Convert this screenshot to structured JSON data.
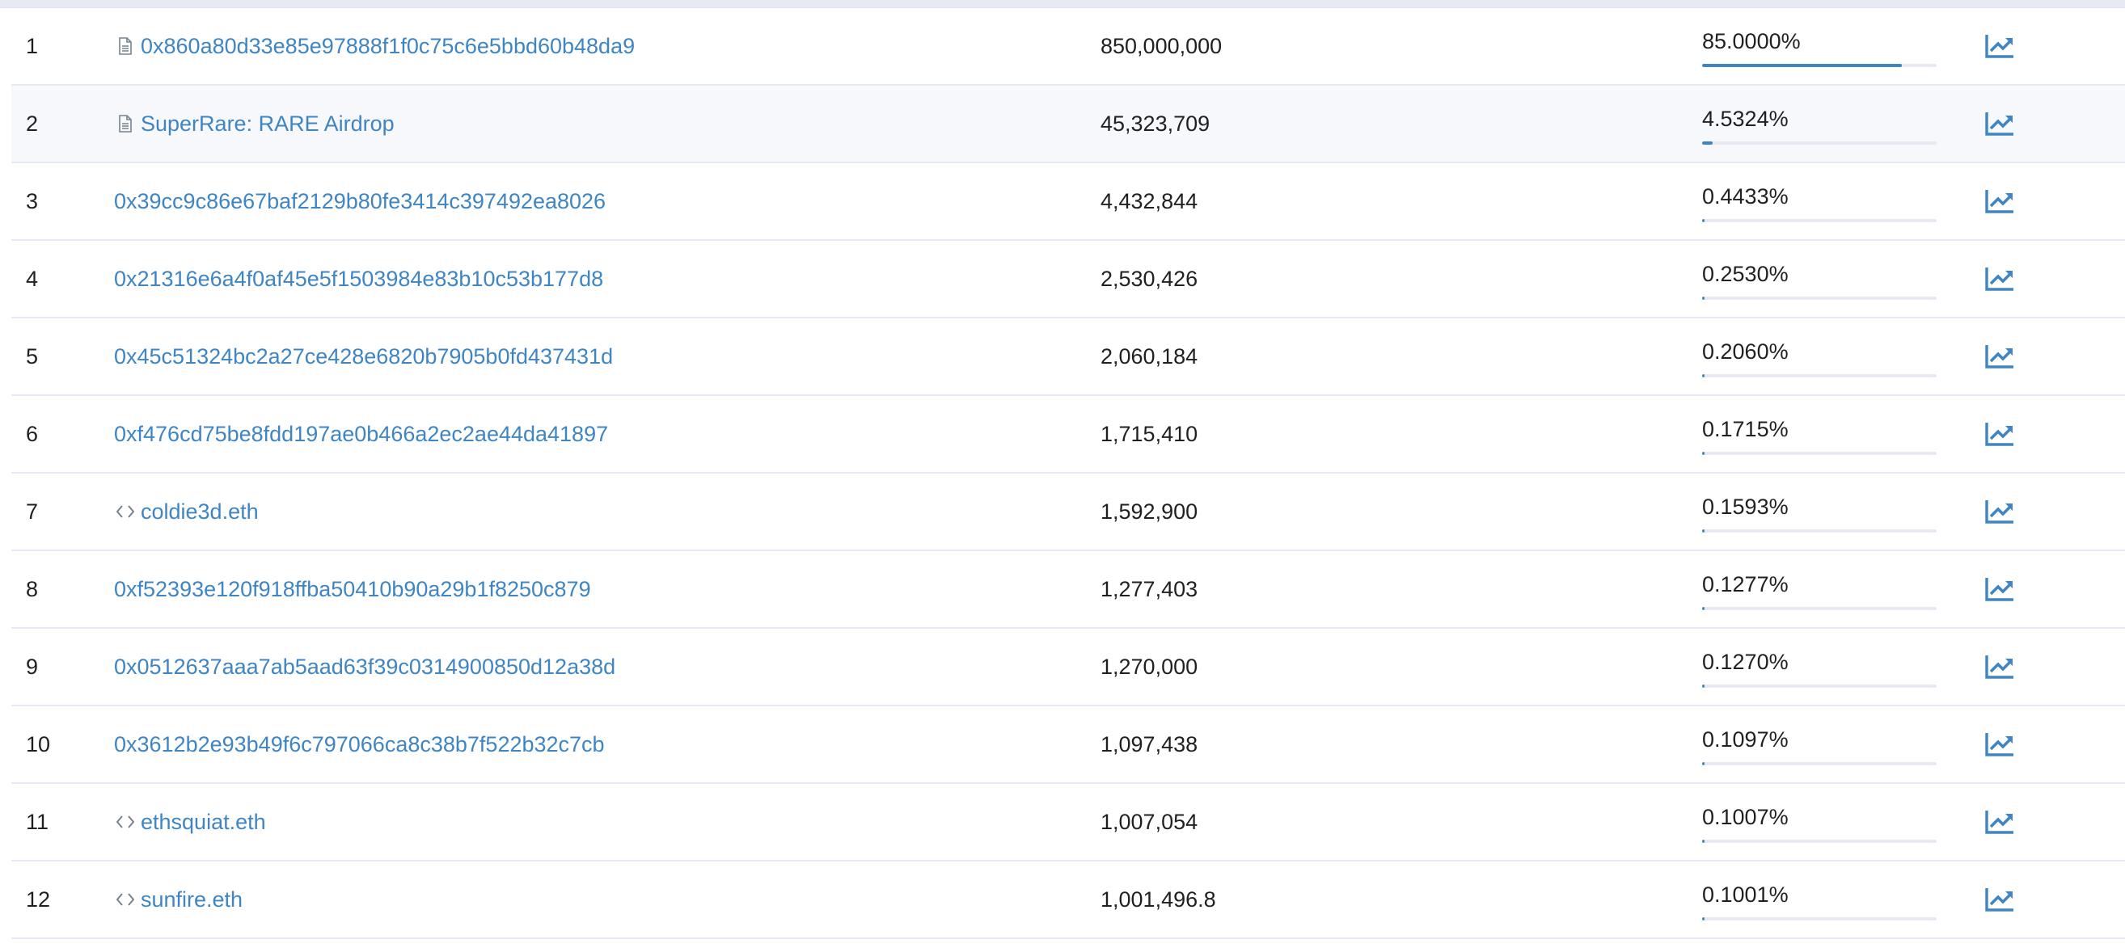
{
  "colors": {
    "link": "#3f85c4",
    "text": "#1e2022",
    "border": "#e7eaf3",
    "hover_row": "#f6f8fb",
    "bar_fill": "#3f85c4",
    "bar_track": "#e7eaf3"
  },
  "holders": [
    {
      "rank": "1",
      "address": "0x860a80d33e85e97888f1f0c75c6e5bbd60b48da9",
      "icon": "contract-file-icon",
      "quantity": "850,000,000",
      "percentage": "85.0000%",
      "share": 0.85,
      "analytics_icon": "chart-line-icon"
    },
    {
      "rank": "2",
      "address": "SuperRare: RARE Airdrop",
      "icon": "contract-file-icon",
      "quantity": "45,323,709",
      "percentage": "4.5324%",
      "share": 0.045324,
      "analytics_icon": "chart-line-icon"
    },
    {
      "rank": "3",
      "address": "0x39cc9c86e67baf2129b80fe3414c397492ea8026",
      "icon": "",
      "quantity": "4,432,844",
      "percentage": "0.4433%",
      "share": 0.004433,
      "analytics_icon": "chart-line-icon"
    },
    {
      "rank": "4",
      "address": "0x21316e6a4f0af45e5f1503984e83b10c53b177d8",
      "icon": "",
      "quantity": "2,530,426",
      "percentage": "0.2530%",
      "share": 0.00253,
      "analytics_icon": "chart-line-icon"
    },
    {
      "rank": "5",
      "address": "0x45c51324bc2a27ce428e6820b7905b0fd437431d",
      "icon": "",
      "quantity": "2,060,184",
      "percentage": "0.2060%",
      "share": 0.00206,
      "analytics_icon": "chart-line-icon"
    },
    {
      "rank": "6",
      "address": "0xf476cd75be8fdd197ae0b466a2ec2ae44da41897",
      "icon": "",
      "quantity": "1,715,410",
      "percentage": "0.1715%",
      "share": 0.001715,
      "analytics_icon": "chart-line-icon"
    },
    {
      "rank": "7",
      "address": "coldie3d.eth",
      "icon": "code-brackets-icon",
      "quantity": "1,592,900",
      "percentage": "0.1593%",
      "share": 0.001593,
      "analytics_icon": "chart-line-icon"
    },
    {
      "rank": "8",
      "address": "0xf52393e120f918ffba50410b90a29b1f8250c879",
      "icon": "",
      "quantity": "1,277,403",
      "percentage": "0.1277%",
      "share": 0.001277,
      "analytics_icon": "chart-line-icon"
    },
    {
      "rank": "9",
      "address": "0x0512637aaa7ab5aad63f39c0314900850d12a38d",
      "icon": "",
      "quantity": "1,270,000",
      "percentage": "0.1270%",
      "share": 0.00127,
      "analytics_icon": "chart-line-icon"
    },
    {
      "rank": "10",
      "address": "0x3612b2e93b49f6c797066ca8c38b7f522b32c7cb",
      "icon": "",
      "quantity": "1,097,438",
      "percentage": "0.1097%",
      "share": 0.001097,
      "analytics_icon": "chart-line-icon"
    },
    {
      "rank": "11",
      "address": "ethsquiat.eth",
      "icon": "code-brackets-icon",
      "quantity": "1,007,054",
      "percentage": "0.1007%",
      "share": 0.001007,
      "analytics_icon": "chart-line-icon"
    },
    {
      "rank": "12",
      "address": "sunfire.eth",
      "icon": "code-brackets-icon",
      "quantity": "1,001,496.8",
      "percentage": "0.1001%",
      "share": 0.001001,
      "analytics_icon": "chart-line-icon"
    }
  ]
}
